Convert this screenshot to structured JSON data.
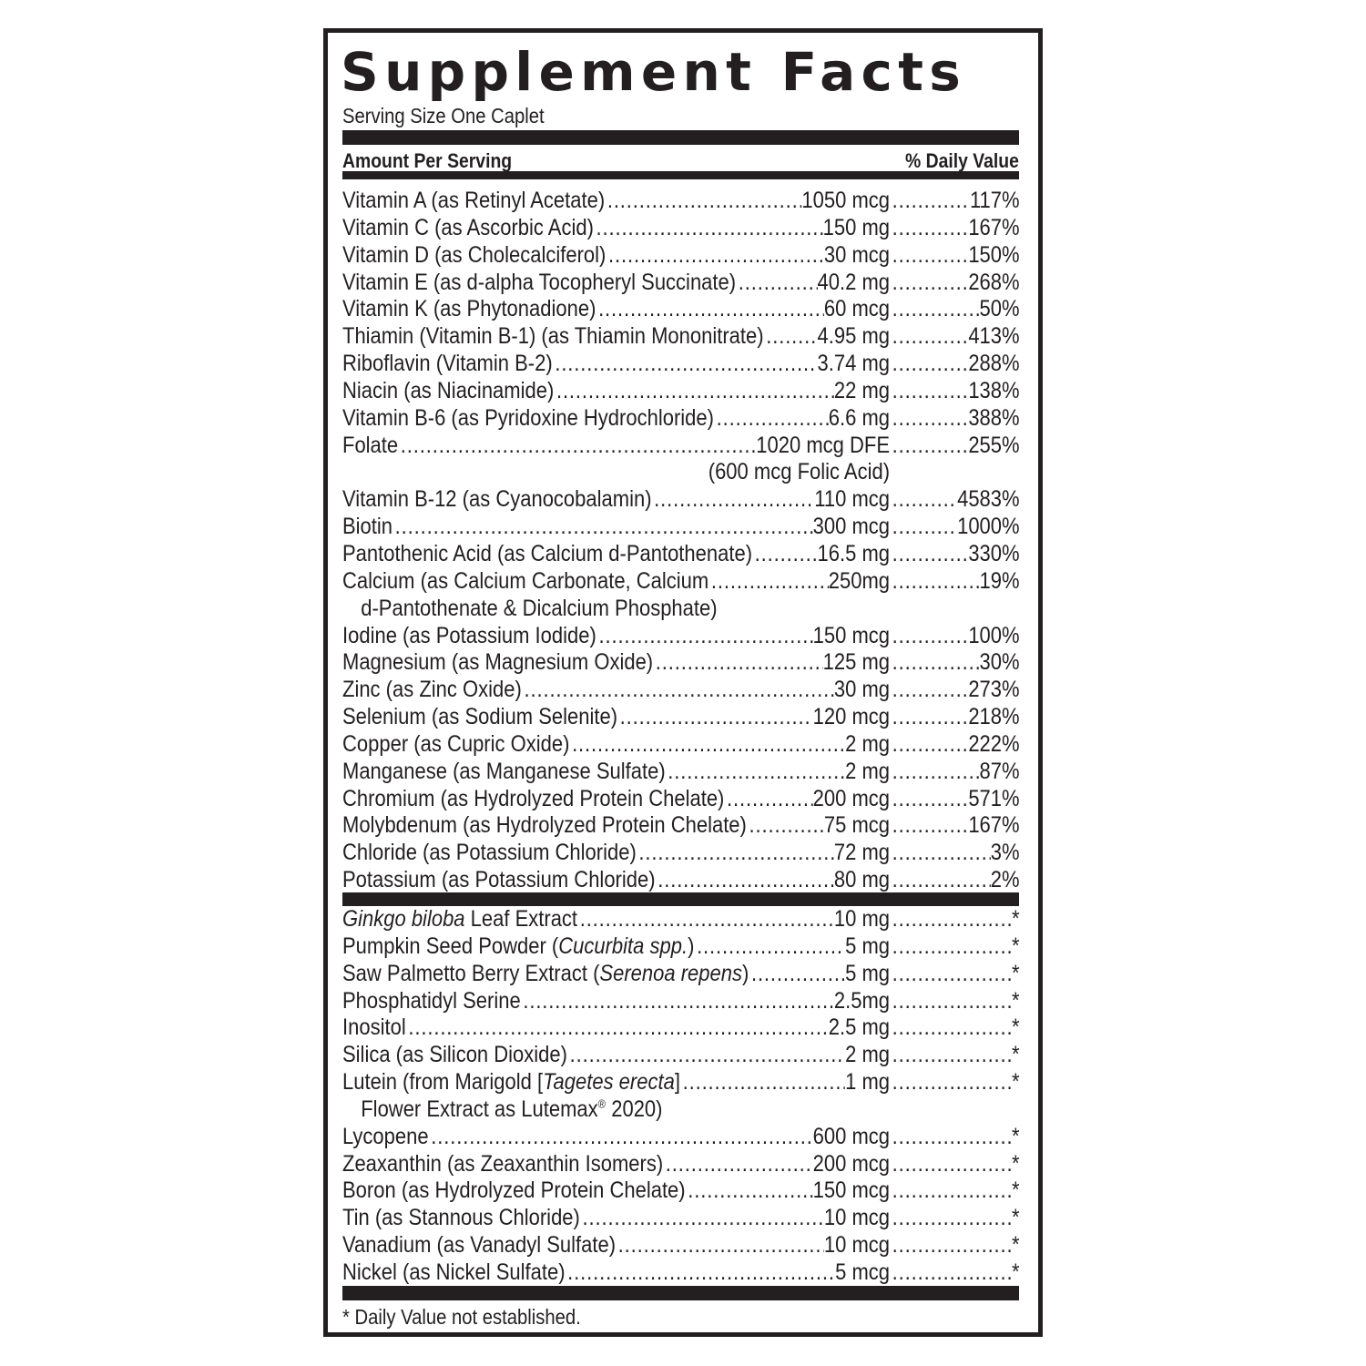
{
  "title": "Supplement Facts",
  "serving_size": "Serving Size One Caplet",
  "header": {
    "amount": "Amount Per Serving",
    "dv": "% Daily Value"
  },
  "vitamins": [
    {
      "name": [
        [
          "Vitamin A (as Retinyl Acetate)",
          false
        ]
      ],
      "amount": "1050 mcg",
      "dv": "117%"
    },
    {
      "name": [
        [
          "Vitamin C (as Ascorbic Acid)",
          false
        ]
      ],
      "amount": "150 mg",
      "dv": "167%"
    },
    {
      "name": [
        [
          "Vitamin D (as Cholecalciferol)",
          false
        ]
      ],
      "amount": "30 mcg",
      "dv": "150%"
    },
    {
      "name": [
        [
          "Vitamin E (as d-alpha Tocopheryl Succinate)",
          false
        ]
      ],
      "amount": "40.2 mg",
      "dv": "268%"
    },
    {
      "name": [
        [
          "Vitamin K (as Phytonadione)",
          false
        ]
      ],
      "amount": "60 mcg",
      "dv": "50%"
    },
    {
      "name": [
        [
          "Thiamin (Vitamin B-1) (as Thiamin Mononitrate)",
          false
        ]
      ],
      "amount": "4.95 mg",
      "dv": "413%"
    },
    {
      "name": [
        [
          "Riboflavin (Vitamin B-2)",
          false
        ]
      ],
      "amount": "3.74 mg",
      "dv": "288%"
    },
    {
      "name": [
        [
          "Niacin (as Niacinamide)",
          false
        ]
      ],
      "amount": "22 mg",
      "dv": "138%"
    },
    {
      "name": [
        [
          "Vitamin B-6 (as Pyridoxine Hydrochloride)",
          false
        ]
      ],
      "amount": "6.6 mg",
      "dv": "388%"
    },
    {
      "name": [
        [
          "Folate",
          false
        ]
      ],
      "amount": "1020 mcg DFE",
      "dv": "255%",
      "continuation": "(600 mcg Folic Acid)",
      "continuation_align": "right"
    },
    {
      "name": [
        [
          "Vitamin B-12 (as Cyanocobalamin)",
          false
        ]
      ],
      "amount": "110 mcg",
      "dv": "4583%"
    },
    {
      "name": [
        [
          "Biotin",
          false
        ]
      ],
      "amount": "300 mcg",
      "dv": "1000%"
    },
    {
      "name": [
        [
          "Pantothenic Acid (as Calcium d-Pantothenate)",
          false
        ]
      ],
      "amount": "16.5 mg",
      "dv": "330%"
    },
    {
      "name": [
        [
          "Calcium (as Calcium Carbonate, Calcium",
          false
        ]
      ],
      "amount": "250mg",
      "dv": "19%",
      "continuation": "d-Pantothenate & Dicalcium Phosphate)",
      "continuation_align": "indent"
    },
    {
      "name": [
        [
          "Iodine (as Potassium Iodide)",
          false
        ]
      ],
      "amount": "150 mcg",
      "dv": "100%"
    },
    {
      "name": [
        [
          "Magnesium (as Magnesium Oxide)",
          false
        ]
      ],
      "amount": "125 mg",
      "dv": "30%"
    },
    {
      "name": [
        [
          "Zinc (as Zinc Oxide)",
          false
        ]
      ],
      "amount": "30 mg",
      "dv": "273%"
    },
    {
      "name": [
        [
          "Selenium (as Sodium Selenite)",
          false
        ]
      ],
      "amount": "120 mcg",
      "dv": "218%"
    },
    {
      "name": [
        [
          "Copper (as Cupric Oxide)",
          false
        ]
      ],
      "amount": "2 mg",
      "dv": "222%"
    },
    {
      "name": [
        [
          "Manganese (as Manganese Sulfate)",
          false
        ]
      ],
      "amount": "2 mg",
      "dv": "87%"
    },
    {
      "name": [
        [
          "Chromium (as Hydrolyzed Protein Chelate)",
          false
        ]
      ],
      "amount": "200 mcg",
      "dv": "571%"
    },
    {
      "name": [
        [
          "Molybdenum (as Hydrolyzed Protein Chelate)",
          false
        ]
      ],
      "amount": "75 mcg",
      "dv": "167%"
    },
    {
      "name": [
        [
          "Chloride (as Potassium Chloride)",
          false
        ]
      ],
      "amount": "72 mg",
      "dv": "3%"
    },
    {
      "name": [
        [
          "Potassium (as Potassium Chloride)",
          false
        ]
      ],
      "amount": "80 mg",
      "dv": "2%"
    }
  ],
  "other": [
    {
      "name": [
        [
          "Ginkgo biloba",
          true
        ],
        [
          " Leaf Extract",
          false
        ]
      ],
      "amount": "10 mg",
      "dv": "*"
    },
    {
      "name": [
        [
          "Pumpkin Seed Powder (",
          false
        ],
        [
          "Cucurbita spp.",
          true
        ],
        [
          ")",
          false
        ]
      ],
      "amount": "5 mg",
      "dv": "*"
    },
    {
      "name": [
        [
          "Saw Palmetto Berry Extract (",
          false
        ],
        [
          "Serenoa repens",
          true
        ],
        [
          ")",
          false
        ]
      ],
      "amount": "5 mg",
      "dv": "*"
    },
    {
      "name": [
        [
          "Phosphatidyl Serine",
          false
        ]
      ],
      "amount": "2.5mg",
      "dv": "*"
    },
    {
      "name": [
        [
          "Inositol",
          false
        ]
      ],
      "amount": "2.5 mg",
      "dv": "*"
    },
    {
      "name": [
        [
          "Silica (as Silicon Dioxide)",
          false
        ]
      ],
      "amount": "2 mg",
      "dv": "*"
    },
    {
      "name": [
        [
          "Lutein (from Marigold [",
          false
        ],
        [
          "Tagetes erecta",
          true
        ],
        [
          "]",
          false
        ]
      ],
      "amount": "1 mg",
      "dv": "*",
      "continuation": "Flower Extract as Lutemax",
      "continuation_sup": "®",
      "continuation_tail": " 2020)",
      "continuation_align": "indent"
    },
    {
      "name": [
        [
          "Lycopene",
          false
        ]
      ],
      "amount": "600 mcg",
      "dv": "*"
    },
    {
      "name": [
        [
          "Zeaxanthin (as Zeaxanthin Isomers)",
          false
        ]
      ],
      "amount": "200 mcg",
      "dv": "*"
    },
    {
      "name": [
        [
          "Boron (as Hydrolyzed Protein Chelate)",
          false
        ]
      ],
      "amount": "150 mcg",
      "dv": "*"
    },
    {
      "name": [
        [
          "Tin (as Stannous Chloride)",
          false
        ]
      ],
      "amount": "10 mcg",
      "dv": "*"
    },
    {
      "name": [
        [
          "Vanadium (as Vanadyl Sulfate)",
          false
        ]
      ],
      "amount": "10 mcg",
      "dv": "*"
    },
    {
      "name": [
        [
          "Nickel (as Nickel Sulfate)",
          false
        ]
      ],
      "amount": "5 mcg",
      "dv": "*"
    }
  ],
  "footnote": "* Daily Value not established."
}
